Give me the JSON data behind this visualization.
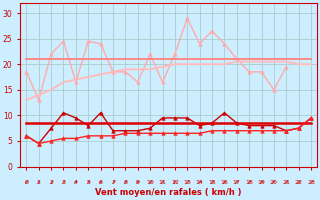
{
  "xlabel": "Vent moyen/en rafales ( km/h )",
  "x": [
    0,
    1,
    2,
    3,
    4,
    5,
    6,
    7,
    8,
    9,
    10,
    11,
    12,
    13,
    14,
    15,
    16,
    17,
    18,
    19,
    20,
    21,
    22,
    23
  ],
  "background_color": "#cceeff",
  "grid_color": "#aacccc",
  "line1_y": [
    18.5,
    13,
    22,
    24.5,
    16.5,
    24.5,
    24,
    18.5,
    18.5,
    16.5,
    22,
    16.5,
    22,
    29,
    24,
    26.5,
    24,
    21,
    18.5,
    18.5,
    15,
    19.5,
    null,
    null
  ],
  "line1_color": "#ffaaaa",
  "line1_marker": "^",
  "line1_markersize": 2.5,
  "line1_linewidth": 1.0,
  "line2_y": [
    21,
    21,
    21,
    21,
    21,
    21,
    21,
    21,
    21,
    21,
    21,
    21,
    21,
    21,
    21,
    21,
    21,
    21,
    21,
    21,
    21,
    21,
    21,
    21
  ],
  "line2_color": "#ff8888",
  "line2_linewidth": 1.4,
  "line3_y": [
    13,
    14,
    15,
    16.5,
    17,
    17.5,
    18,
    18.5,
    19,
    19,
    19,
    19.5,
    20,
    20,
    20,
    20,
    20,
    20.5,
    20.5,
    20.5,
    20.5,
    20.5,
    20,
    20
  ],
  "line3_color": "#ffbbbb",
  "line3_linewidth": 1.4,
  "line4_y": [
    6,
    4.5,
    7.5,
    10.5,
    9.5,
    8,
    10.5,
    7,
    7,
    7,
    7.5,
    9.5,
    9.5,
    9.5,
    8,
    8.5,
    10.5,
    8.5,
    8,
    8,
    8,
    7,
    7.5,
    9.5
  ],
  "line4_color": "#cc0000",
  "line4_marker": "^",
  "line4_markersize": 2.5,
  "line4_linewidth": 1.0,
  "line5_y": [
    8.5,
    8.5,
    8.5,
    8.5,
    8.5,
    8.5,
    8.5,
    8.5,
    8.5,
    8.5,
    8.5,
    8.5,
    8.5,
    8.5,
    8.5,
    8.5,
    8.5,
    8.5,
    8.5,
    8.5,
    8.5,
    8.5,
    8.5,
    8.5
  ],
  "line5_color": "#dd0000",
  "line5_linewidth": 1.8,
  "line6_y": [
    6,
    4.5,
    5,
    5.5,
    5.5,
    6,
    6,
    6,
    6.5,
    6.5,
    6.5,
    6.5,
    6.5,
    6.5,
    6.5,
    7,
    7,
    7,
    7,
    7,
    7,
    7,
    7.5,
    9.5
  ],
  "line6_color": "#ff2222",
  "line6_marker": "^",
  "line6_markersize": 2.5,
  "line6_linewidth": 1.0,
  "ylim": [
    0,
    32
  ],
  "yticks": [
    0,
    5,
    10,
    15,
    20,
    25,
    30
  ],
  "xlim": [
    -0.5,
    23.5
  ]
}
